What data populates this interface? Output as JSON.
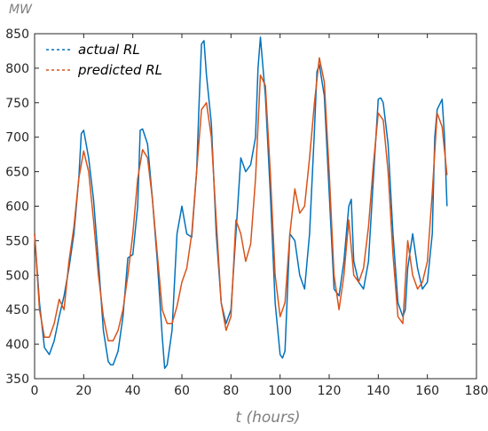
{
  "chart_data": {
    "type": "line",
    "ylabel": "MW",
    "xlabel": "t (hours)",
    "xlim": [
      0,
      180
    ],
    "ylim": [
      350,
      850
    ],
    "xticks": [
      0,
      20,
      40,
      60,
      80,
      100,
      120,
      140,
      160,
      180
    ],
    "yticks": [
      350,
      400,
      450,
      500,
      550,
      600,
      650,
      700,
      750,
      800,
      850
    ],
    "grid": false,
    "legend": "top-left",
    "series": [
      {
        "name": "actual RL",
        "color": "#0072BD",
        "line_style": "solid",
        "legend_style": "dashed",
        "x": [
          0,
          2,
          4,
          6,
          8,
          10,
          12,
          14,
          16,
          18,
          19,
          20,
          22,
          24,
          26,
          28,
          30,
          31,
          32,
          34,
          36,
          38,
          40,
          42,
          43,
          44,
          46,
          48,
          50,
          52,
          53,
          54,
          56,
          58,
          60,
          62,
          64,
          66,
          67,
          68,
          69,
          70,
          72,
          74,
          76,
          78,
          80,
          82,
          84,
          86,
          88,
          90,
          91,
          92,
          94,
          96,
          98,
          100,
          101,
          102,
          104,
          106,
          108,
          110,
          112,
          114,
          115,
          116,
          118,
          120,
          122,
          124,
          126,
          128,
          129,
          130,
          132,
          134,
          136,
          138,
          140,
          141,
          142,
          144,
          146,
          148,
          150,
          151,
          152,
          154,
          156,
          158,
          160,
          162,
          163,
          164,
          166,
          167,
          168
        ],
        "y": [
          560,
          460,
          395,
          385,
          405,
          440,
          470,
          510,
          560,
          640,
          705,
          710,
          670,
          610,
          520,
          420,
          375,
          370,
          370,
          390,
          440,
          525,
          530,
          600,
          710,
          712,
          690,
          610,
          520,
          410,
          365,
          370,
          420,
          560,
          600,
          560,
          555,
          650,
          750,
          835,
          840,
          790,
          720,
          560,
          460,
          430,
          450,
          560,
          670,
          650,
          660,
          700,
          800,
          845,
          760,
          620,
          460,
          385,
          380,
          390,
          560,
          550,
          500,
          480,
          560,
          710,
          795,
          805,
          760,
          620,
          480,
          470,
          520,
          600,
          610,
          520,
          490,
          480,
          520,
          640,
          755,
          757,
          750,
          690,
          560,
          460,
          440,
          450,
          510,
          560,
          510,
          480,
          490,
          560,
          700,
          740,
          755,
          700,
          600
        ]
      },
      {
        "name": "predicted RL",
        "color": "#D95319",
        "line_style": "solid",
        "legend_style": "dashed",
        "x": [
          0,
          2,
          4,
          6,
          8,
          10,
          12,
          14,
          16,
          18,
          20,
          22,
          24,
          26,
          28,
          30,
          32,
          34,
          36,
          38,
          40,
          42,
          44,
          46,
          48,
          50,
          52,
          54,
          56,
          58,
          60,
          62,
          64,
          66,
          68,
          70,
          72,
          74,
          76,
          78,
          80,
          82,
          84,
          86,
          88,
          90,
          92,
          94,
          96,
          98,
          100,
          102,
          104,
          106,
          108,
          110,
          112,
          114,
          116,
          118,
          120,
          122,
          124,
          126,
          128,
          130,
          132,
          134,
          136,
          138,
          140,
          142,
          144,
          146,
          148,
          150,
          152,
          154,
          156,
          158,
          160,
          162,
          164,
          166,
          168
        ],
        "y": [
          560,
          450,
          410,
          410,
          430,
          465,
          450,
          520,
          570,
          640,
          680,
          650,
          580,
          500,
          440,
          405,
          405,
          420,
          450,
          500,
          560,
          640,
          682,
          670,
          610,
          530,
          450,
          430,
          430,
          455,
          490,
          510,
          560,
          650,
          740,
          750,
          700,
          580,
          460,
          420,
          440,
          580,
          560,
          520,
          545,
          640,
          790,
          775,
          650,
          500,
          440,
          460,
          560,
          625,
          590,
          600,
          670,
          750,
          815,
          780,
          650,
          500,
          450,
          500,
          580,
          500,
          490,
          510,
          570,
          660,
          735,
          725,
          650,
          530,
          440,
          430,
          550,
          500,
          480,
          490,
          520,
          620,
          735,
          715,
          645
        ]
      }
    ]
  }
}
